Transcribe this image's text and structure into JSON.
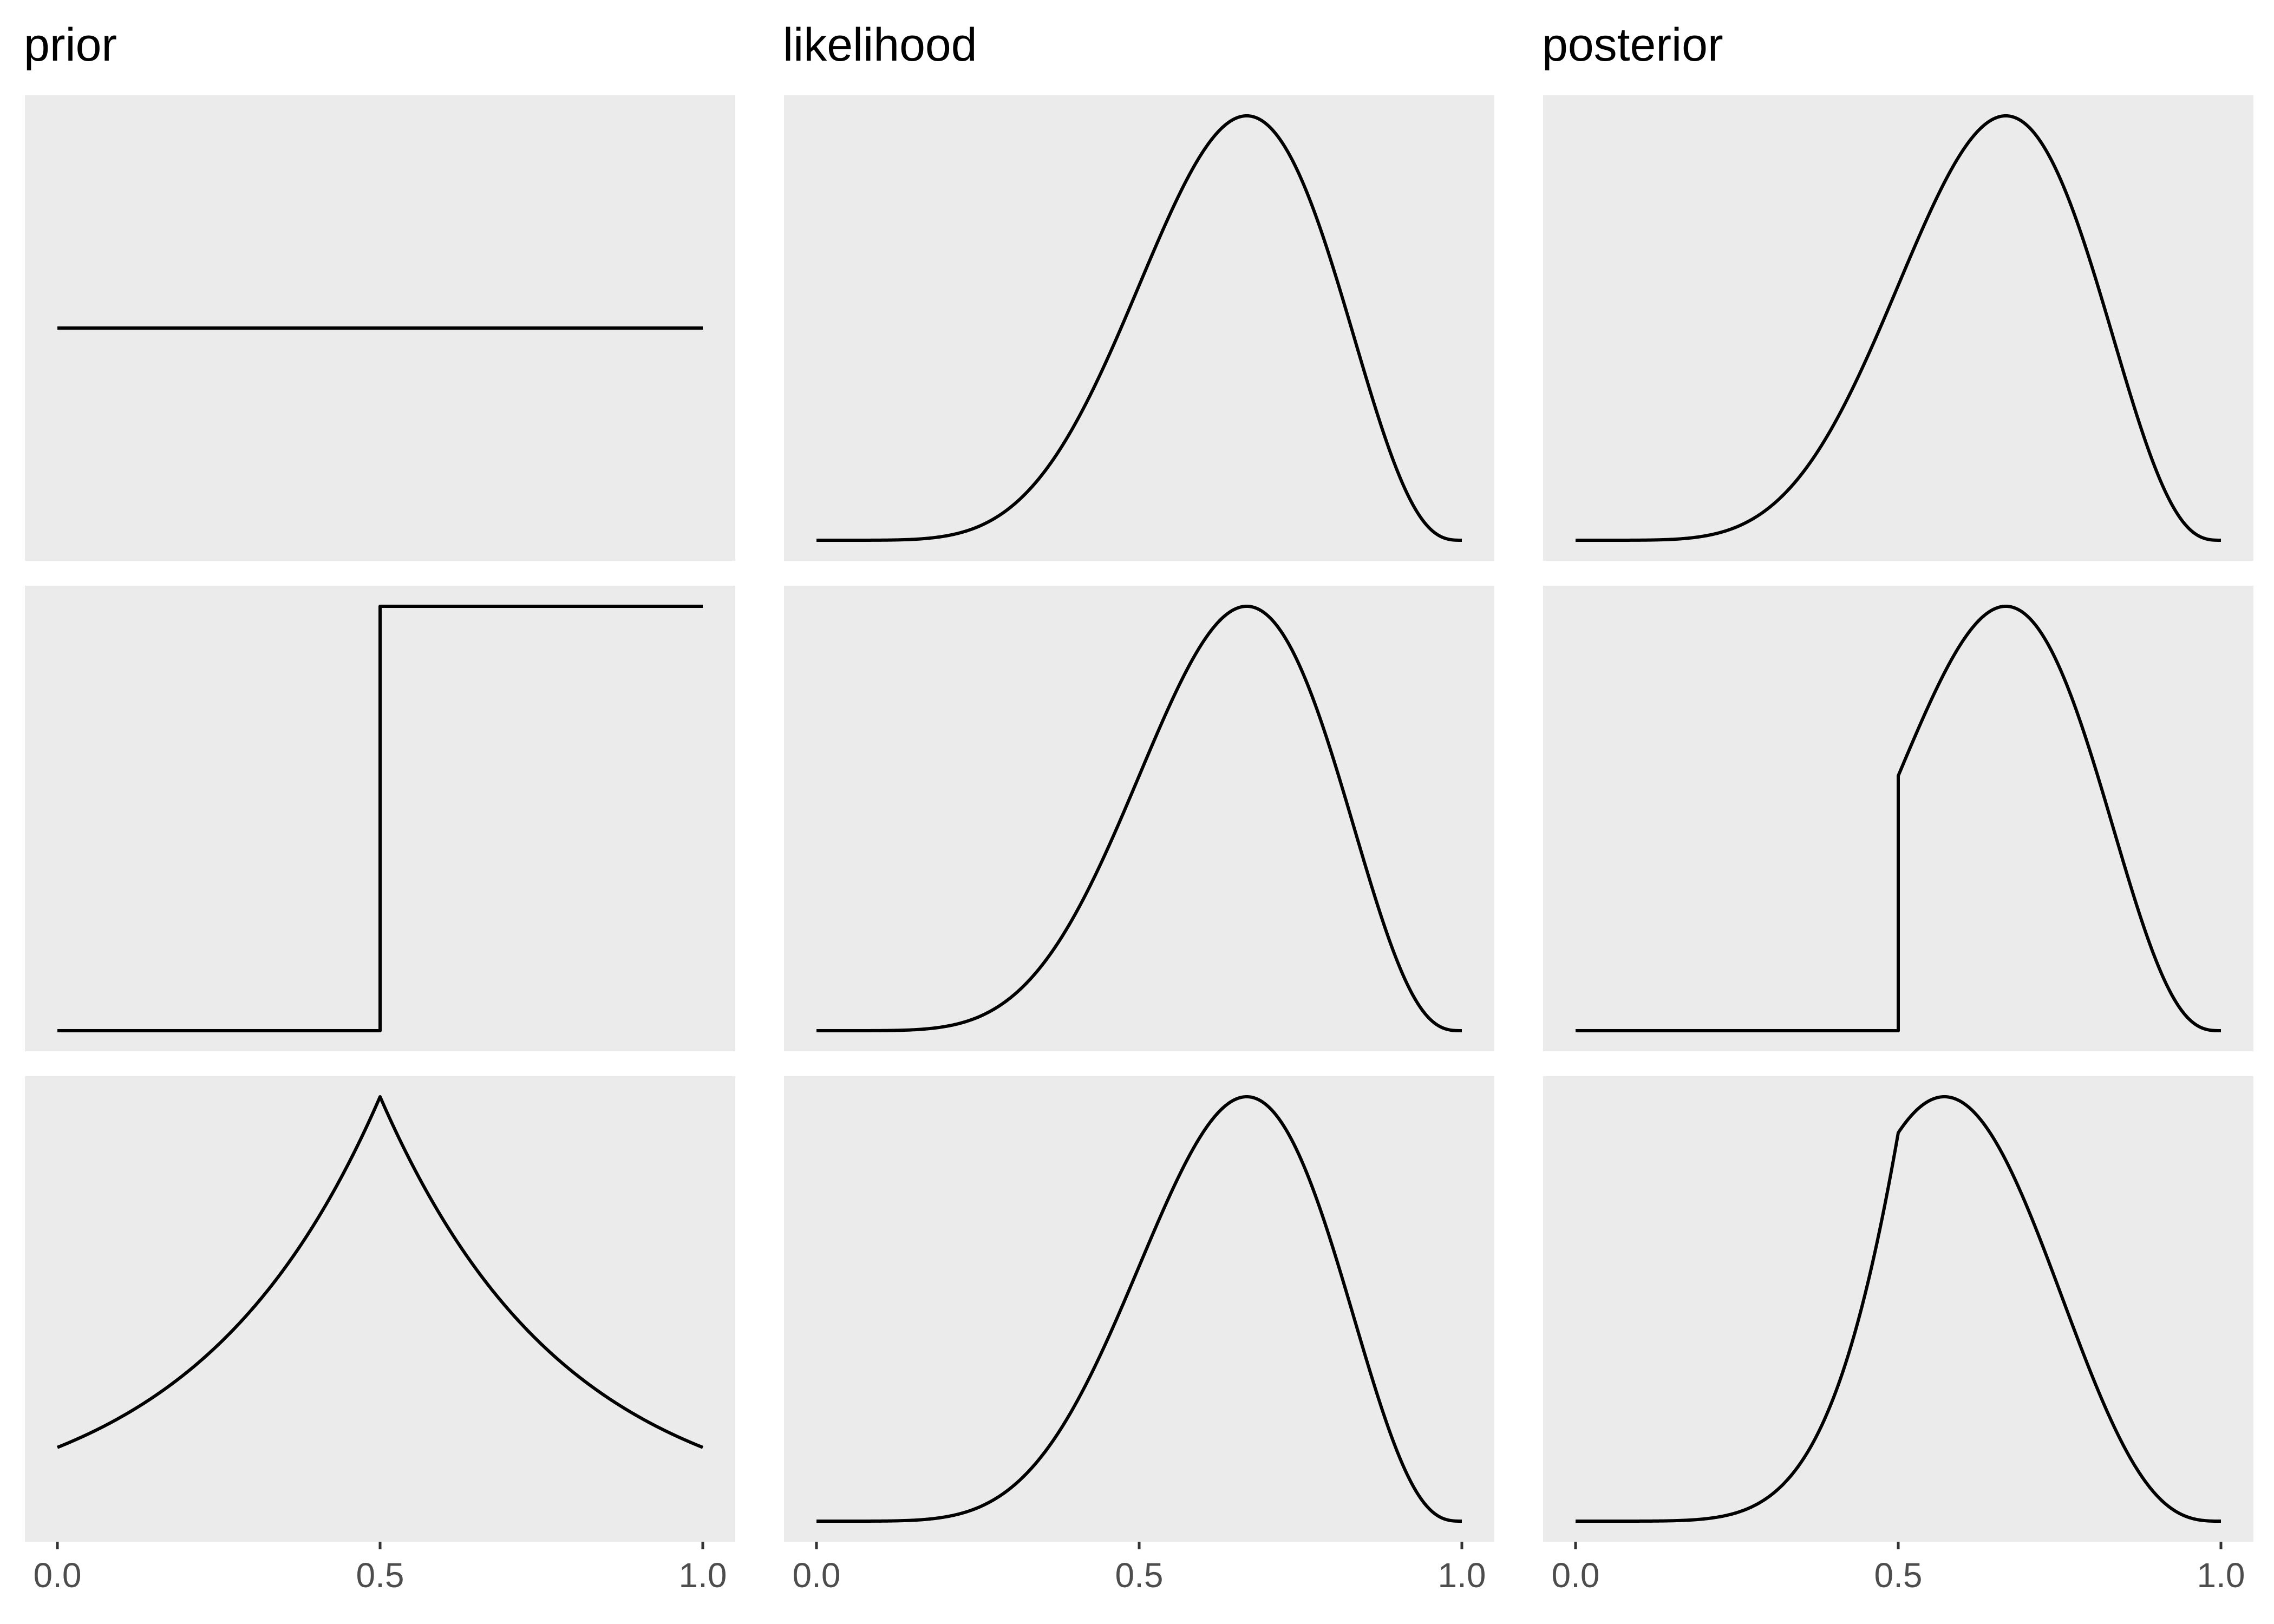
{
  "chart_data": {
    "type": "line",
    "layout": "facet-grid",
    "columns": [
      "prior",
      "likelihood",
      "posterior"
    ],
    "x_ticks": [
      0.0,
      0.5,
      1.0
    ],
    "x_tick_labels": [
      "0.0",
      "0.5",
      "1.0"
    ],
    "xlim": [
      0,
      1
    ],
    "y_axis_shown": false,
    "grid": false,
    "panel_background": "#ebebeb",
    "line_color": "#000000",
    "likelihood_formula": "x^6 (1-x)^3",
    "rows": [
      {
        "prior": {
          "formula": "uniform",
          "x": [
            0,
            1
          ],
          "y": [
            1,
            1
          ]
        },
        "likelihood": {
          "x": [
            0,
            0.1,
            0.2,
            0.3,
            0.4,
            0.5,
            0.6,
            0.667,
            0.7,
            0.8,
            0.9,
            1.0
          ],
          "y": [
            0,
            0.0007,
            0.0171,
            0.0939,
            0.2596,
            0.5,
            0.7372,
            0.75,
            0.7239,
            0.5035,
            0.1495,
            0
          ]
        },
        "posterior": {
          "x": [
            0,
            0.1,
            0.2,
            0.3,
            0.4,
            0.5,
            0.6,
            0.667,
            0.7,
            0.8,
            0.9,
            1.0
          ],
          "y": [
            0,
            0.0007,
            0.0171,
            0.0939,
            0.2596,
            0.5,
            0.7372,
            0.75,
            0.7239,
            0.5035,
            0.1495,
            0
          ]
        }
      },
      {
        "prior": {
          "formula": "step at 0.5",
          "x": [
            0,
            0.5,
            0.5,
            1
          ],
          "y": [
            0,
            0,
            1,
            1
          ]
        },
        "likelihood": {
          "x": [
            0,
            0.1,
            0.2,
            0.3,
            0.4,
            0.5,
            0.6,
            0.667,
            0.7,
            0.8,
            0.9,
            1.0
          ],
          "y": [
            0,
            0.0007,
            0.0171,
            0.0939,
            0.2596,
            0.5,
            0.7372,
            0.75,
            0.7239,
            0.5035,
            0.1495,
            0
          ]
        },
        "posterior": {
          "x": [
            0,
            0.5,
            0.5,
            0.6,
            0.667,
            0.7,
            0.8,
            0.9,
            1.0
          ],
          "y": [
            0,
            0,
            0.5,
            0.7372,
            0.75,
            0.7239,
            0.5035,
            0.1495,
            0
          ]
        }
      },
      {
        "prior": {
          "formula": "peaked at 0.5",
          "x": [
            0,
            0.1,
            0.2,
            0.3,
            0.4,
            0.5,
            0.6,
            0.7,
            0.8,
            0.9,
            1.0
          ],
          "y": [
            0.03,
            0.1,
            0.19,
            0.33,
            0.55,
            1.0,
            0.55,
            0.33,
            0.19,
            0.1,
            0.03
          ]
        },
        "likelihood": {
          "x": [
            0,
            0.1,
            0.2,
            0.3,
            0.4,
            0.5,
            0.6,
            0.667,
            0.7,
            0.8,
            0.9,
            1.0
          ],
          "y": [
            0,
            0.0007,
            0.0171,
            0.0939,
            0.2596,
            0.5,
            0.7372,
            0.75,
            0.7239,
            0.5035,
            0.1495,
            0
          ]
        },
        "posterior": {
          "x": [
            0,
            0.3,
            0.4,
            0.5,
            0.556,
            0.6,
            0.7,
            0.8,
            0.9,
            1.0
          ],
          "y": [
            0,
            0.031,
            0.143,
            0.5,
            0.54,
            0.505,
            0.295,
            0.11,
            0.02,
            0
          ]
        }
      }
    ]
  }
}
